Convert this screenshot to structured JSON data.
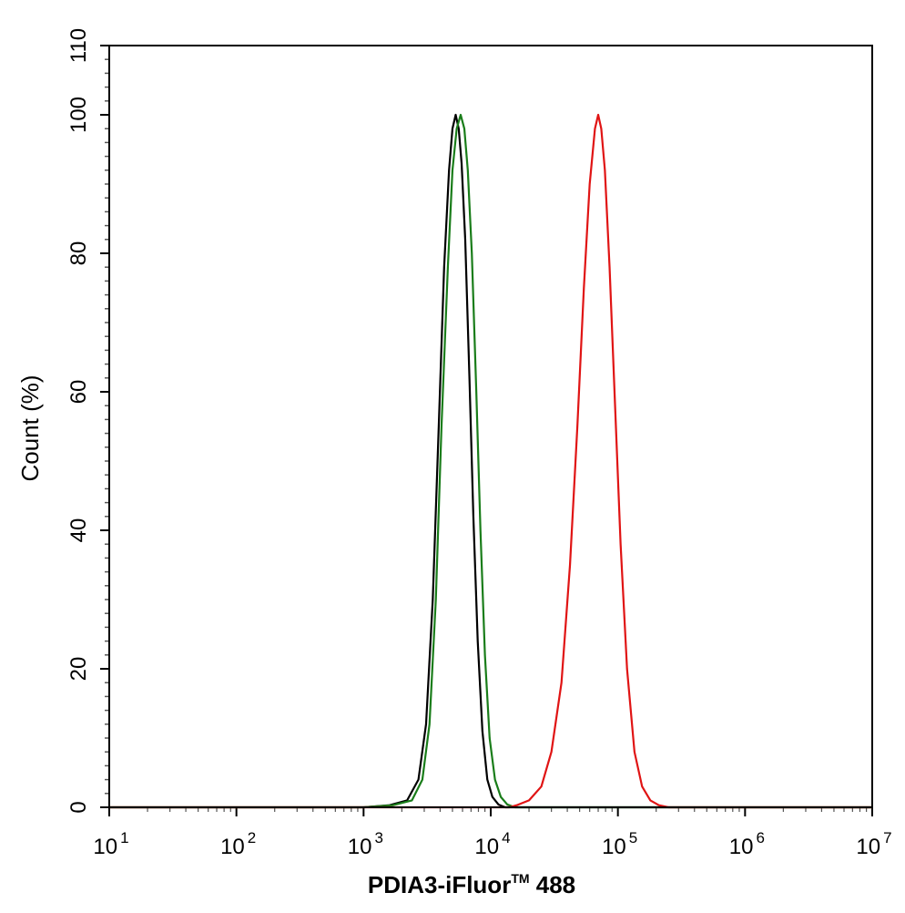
{
  "chart_data": {
    "type": "line",
    "xlabel": "PDIA3-iFluor",
    "xlabel_mark": "TM",
    "xlabel_suffix": " 488",
    "ylabel": "Count  (%)",
    "x_scale": "log",
    "xlim": [
      10,
      10000000
    ],
    "ylim": [
      0,
      110
    ],
    "x_ticks": [
      {
        "value": 10,
        "base": "10",
        "exp": "1"
      },
      {
        "value": 100,
        "base": "10",
        "exp": "2"
      },
      {
        "value": 1000,
        "base": "10",
        "exp": "3"
      },
      {
        "value": 10000,
        "base": "10",
        "exp": "4"
      },
      {
        "value": 100000,
        "base": "10",
        "exp": "5"
      },
      {
        "value": 1000000,
        "base": "10",
        "exp": "6"
      },
      {
        "value": 10000000,
        "base": "10",
        "exp": "7"
      }
    ],
    "y_ticks": [
      0,
      20,
      40,
      60,
      80,
      100,
      110
    ],
    "grid": false,
    "series": [
      {
        "color": "#000000",
        "points": [
          [
            10,
            0
          ],
          [
            1000,
            0
          ],
          [
            1600,
            0.3
          ],
          [
            2200,
            1
          ],
          [
            2700,
            4
          ],
          [
            3100,
            12
          ],
          [
            3500,
            30
          ],
          [
            3900,
            55
          ],
          [
            4300,
            78
          ],
          [
            4700,
            92
          ],
          [
            5000,
            98
          ],
          [
            5300,
            100
          ],
          [
            5600,
            98
          ],
          [
            5900,
            93
          ],
          [
            6300,
            82
          ],
          [
            6800,
            62
          ],
          [
            7300,
            42
          ],
          [
            7900,
            24
          ],
          [
            8600,
            11
          ],
          [
            9400,
            4
          ],
          [
            10300,
            1.5
          ],
          [
            11500,
            0.4
          ],
          [
            13000,
            0
          ],
          [
            10000000,
            0
          ]
        ]
      },
      {
        "color": "#1a7d1a",
        "points": [
          [
            10,
            0
          ],
          [
            1000,
            0
          ],
          [
            1700,
            0.3
          ],
          [
            2400,
            1
          ],
          [
            2900,
            4
          ],
          [
            3300,
            12
          ],
          [
            3700,
            30
          ],
          [
            4100,
            55
          ],
          [
            4600,
            78
          ],
          [
            5000,
            92
          ],
          [
            5400,
            98
          ],
          [
            5800,
            100
          ],
          [
            6200,
            98
          ],
          [
            6600,
            92
          ],
          [
            7100,
            80
          ],
          [
            7700,
            60
          ],
          [
            8300,
            40
          ],
          [
            9000,
            22
          ],
          [
            9800,
            10
          ],
          [
            10800,
            4
          ],
          [
            12000,
            1.5
          ],
          [
            13500,
            0.4
          ],
          [
            15500,
            0
          ],
          [
            10000000,
            0
          ]
        ]
      },
      {
        "color": "#e01414",
        "points": [
          [
            10,
            0
          ],
          [
            14000,
            0
          ],
          [
            16000,
            0.3
          ],
          [
            20000,
            1
          ],
          [
            25000,
            3
          ],
          [
            30000,
            8
          ],
          [
            36000,
            18
          ],
          [
            42000,
            35
          ],
          [
            48000,
            55
          ],
          [
            54000,
            75
          ],
          [
            60000,
            90
          ],
          [
            66000,
            98
          ],
          [
            70000,
            100
          ],
          [
            74000,
            98
          ],
          [
            79000,
            92
          ],
          [
            86000,
            78
          ],
          [
            95000,
            58
          ],
          [
            105000,
            38
          ],
          [
            118000,
            20
          ],
          [
            135000,
            8
          ],
          [
            155000,
            3
          ],
          [
            180000,
            1
          ],
          [
            210000,
            0.3
          ],
          [
            250000,
            0
          ],
          [
            10000000,
            0
          ]
        ]
      }
    ]
  }
}
